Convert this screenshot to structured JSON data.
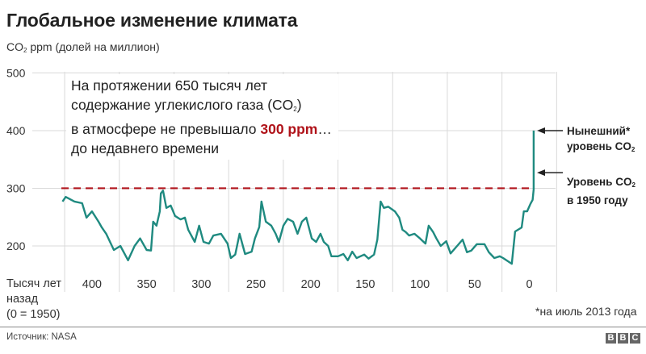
{
  "title": "Глобальное изменение климата",
  "subtitle": {
    "pre": "CO",
    "sub": "2",
    "post": " ppm (долей на миллион)"
  },
  "annotation": {
    "line1": "На протяжении 650 тысяч лет",
    "line2_pre": "содержание углекислого газа (CO",
    "line2_sub": "2",
    "line2_post": ")",
    "line3_pre": "в атмосфере не превышало ",
    "line3_highlight": "300 ppm",
    "line3_post": "…",
    "line4": "до недавнего времени"
  },
  "labels": {
    "current": {
      "line1": "Нынешний*",
      "line2_pre": "уровень CO",
      "line2_sub": "2"
    },
    "level1950": {
      "line1_pre": "Уровень CO",
      "line1_sub": "2",
      "line2": "в 1950 году"
    }
  },
  "x_unit": {
    "line1": "Тысяч лет",
    "line2": "назад",
    "line3": "(0 = 1950)"
  },
  "footnote": "*на июль 2013 года",
  "source": "Источник: NASA",
  "logo": [
    "B",
    "B",
    "C"
  ],
  "colors": {
    "series": "#1f8a80",
    "threshold": "#b0131a",
    "grid": "#d9d9d9"
  },
  "chart_data": {
    "type": "line",
    "title": "Глобальное изменение климата",
    "ylabel": "CO2 ppm (долей на миллион)",
    "xlabel": "Тысяч лет назад (0 = 1950)",
    "xlim": [
      428,
      -24
    ],
    "ylim": [
      158,
      502
    ],
    "grid": true,
    "x_ticks": [
      400,
      350,
      300,
      250,
      200,
      150,
      100,
      50,
      0
    ],
    "x_tick_labels": [
      "400",
      "350",
      "300",
      "250",
      "200",
      "150",
      "100",
      "50",
      "0"
    ],
    "y_ticks": [
      200,
      300,
      400,
      500
    ],
    "y_tick_labels": [
      "200",
      "300",
      "400",
      "500"
    ],
    "threshold": {
      "value": 300,
      "style": "dashed"
    },
    "series": [
      {
        "x": [
          427,
          424,
          416,
          409,
          405,
          400,
          394,
          391,
          387,
          380,
          374,
          367,
          361,
          356,
          350,
          346,
          344,
          341,
          338,
          337,
          335,
          332,
          328,
          324,
          319,
          315,
          312,
          306,
          302,
          298,
          293,
          289,
          282,
          276,
          273,
          269,
          265,
          260,
          254,
          251,
          247,
          245,
          241,
          236,
          232,
          229,
          225,
          221,
          216,
          212,
          208,
          204,
          199,
          195,
          191,
          188,
          184,
          181,
          175,
          170,
          166,
          162,
          158,
          151,
          147,
          142,
          139,
          136,
          133,
          129,
          123,
          119,
          116,
          113,
          110,
          105,
          100,
          95,
          92,
          88,
          85,
          81,
          76,
          72,
          66,
          61,
          57,
          53,
          48,
          41,
          37,
          32,
          27,
          24,
          16,
          13,
          7,
          5,
          2,
          -1,
          -3,
          -4,
          -4
        ],
        "y": [
          277,
          285,
          277,
          274,
          249,
          260,
          242,
          232,
          221,
          193,
          200,
          175,
          200,
          213,
          193,
          192,
          242,
          235,
          260,
          291,
          296,
          266,
          270,
          252,
          246,
          249,
          228,
          207,
          235,
          207,
          204,
          218,
          221,
          204,
          179,
          185,
          221,
          186,
          190,
          213,
          233,
          277,
          242,
          235,
          221,
          207,
          235,
          247,
          242,
          221,
          242,
          249,
          213,
          207,
          221,
          207,
          200,
          182,
          182,
          186,
          175,
          190,
          179,
          185,
          178,
          185,
          211,
          277,
          266,
          268,
          260,
          249,
          228,
          224,
          218,
          221,
          213,
          204,
          235,
          224,
          213,
          200,
          208,
          187,
          200,
          211,
          189,
          192,
          203,
          203,
          189,
          179,
          182,
          179,
          169,
          225,
          232,
          260,
          260,
          273,
          280,
          298,
          400
        ]
      }
    ]
  }
}
